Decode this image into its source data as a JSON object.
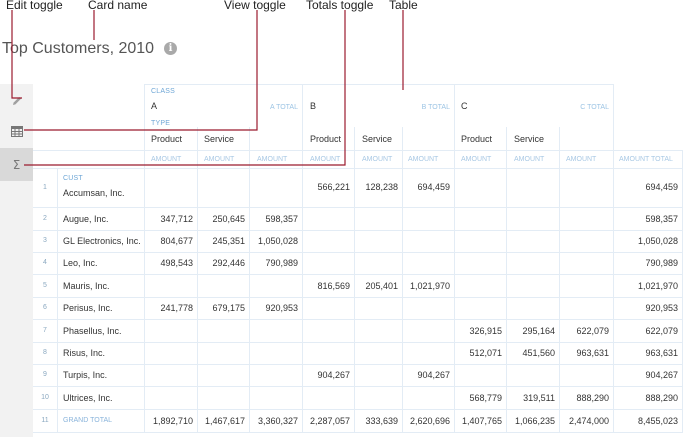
{
  "callouts": {
    "edit_toggle": "Edit toggle",
    "card_name": "Card name",
    "view_toggle": "View toggle",
    "totals_toggle": "Totals toggle",
    "table": "Table"
  },
  "card": {
    "title": "Top Customers, 2010",
    "info_icon_glyph": "i"
  },
  "sidebar": {
    "edit_icon": "pencil-icon",
    "view_icon": "table-grid-icon",
    "totals_glyph": "Σ"
  },
  "table": {
    "class_label": "CLASS",
    "type_label": "TYPE",
    "cust_label": "CUST",
    "amount_label": "AMOUNT",
    "amount_total_label": "AMOUNT TOTAL",
    "grand_total_label": "GRAND TOTAL",
    "groups": [
      {
        "name": "A",
        "total_label": "A TOTAL"
      },
      {
        "name": "B",
        "total_label": "B TOTAL"
      },
      {
        "name": "C",
        "total_label": "C TOTAL"
      }
    ],
    "types": [
      "Product",
      "Service"
    ],
    "rows": [
      {
        "num": "1",
        "name": "Accumsan, Inc.",
        "vals": [
          "",
          "",
          "",
          "566,221",
          "128,238",
          "694,459",
          "",
          "",
          "",
          "694,459"
        ]
      },
      {
        "num": "2",
        "name": "Augue, Inc.",
        "vals": [
          "347,712",
          "250,645",
          "598,357",
          "",
          "",
          "",
          "",
          "",
          "",
          "598,357"
        ]
      },
      {
        "num": "3",
        "name": "GL Electronics, Inc.",
        "vals": [
          "804,677",
          "245,351",
          "1,050,028",
          "",
          "",
          "",
          "",
          "",
          "",
          "1,050,028"
        ]
      },
      {
        "num": "4",
        "name": "Leo, Inc.",
        "vals": [
          "498,543",
          "292,446",
          "790,989",
          "",
          "",
          "",
          "",
          "",
          "",
          "790,989"
        ]
      },
      {
        "num": "5",
        "name": "Mauris, Inc.",
        "vals": [
          "",
          "",
          "",
          "816,569",
          "205,401",
          "1,021,970",
          "",
          "",
          "",
          "1,021,970"
        ]
      },
      {
        "num": "6",
        "name": "Perisus, Inc.",
        "vals": [
          "241,778",
          "679,175",
          "920,953",
          "",
          "",
          "",
          "",
          "",
          "",
          "920,953"
        ]
      },
      {
        "num": "7",
        "name": "Phasellus, Inc.",
        "vals": [
          "",
          "",
          "",
          "",
          "",
          "",
          "326,915",
          "295,164",
          "622,079",
          "622,079"
        ]
      },
      {
        "num": "8",
        "name": "Risus, Inc.",
        "vals": [
          "",
          "",
          "",
          "",
          "",
          "",
          "512,071",
          "451,560",
          "963,631",
          "963,631"
        ]
      },
      {
        "num": "9",
        "name": "Turpis, Inc.",
        "vals": [
          "",
          "",
          "",
          "904,267",
          "",
          "904,267",
          "",
          "",
          "",
          "904,267"
        ]
      },
      {
        "num": "10",
        "name": "Ultrices, Inc.",
        "vals": [
          "",
          "",
          "",
          "",
          "",
          "",
          "568,779",
          "319,511",
          "888,290",
          "888,290"
        ]
      },
      {
        "num": "11",
        "name": "",
        "vals": [
          "1,892,710",
          "1,467,617",
          "3,360,327",
          "2,287,057",
          "333,639",
          "2,620,696",
          "1,407,765",
          "1,066,235",
          "2,474,000",
          "8,455,023"
        ]
      }
    ]
  },
  "colors": {
    "callout_line": "#9b1b2e",
    "grid_line": "#e3ecf5",
    "header_bg": "#ffffff"
  }
}
